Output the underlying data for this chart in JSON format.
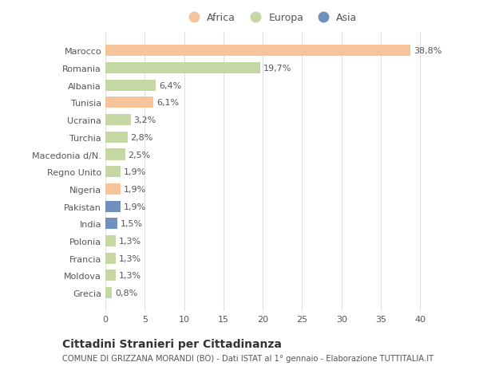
{
  "countries": [
    "Marocco",
    "Romania",
    "Albania",
    "Tunisia",
    "Ucraina",
    "Turchia",
    "Macedonia d/N.",
    "Regno Unito",
    "Nigeria",
    "Pakistan",
    "India",
    "Polonia",
    "Francia",
    "Moldova",
    "Grecia"
  ],
  "values": [
    38.8,
    19.7,
    6.4,
    6.1,
    3.2,
    2.8,
    2.5,
    1.9,
    1.9,
    1.9,
    1.5,
    1.3,
    1.3,
    1.3,
    0.8
  ],
  "labels": [
    "38,8%",
    "19,7%",
    "6,4%",
    "6,1%",
    "3,2%",
    "2,8%",
    "2,5%",
    "1,9%",
    "1,9%",
    "1,9%",
    "1,5%",
    "1,3%",
    "1,3%",
    "1,3%",
    "0,8%"
  ],
  "continents": [
    "Africa",
    "Europa",
    "Europa",
    "Africa",
    "Europa",
    "Europa",
    "Europa",
    "Europa",
    "Africa",
    "Asia",
    "Asia",
    "Europa",
    "Europa",
    "Europa",
    "Europa"
  ],
  "colors": {
    "Africa": "#F5C49A",
    "Europa": "#C5D8A4",
    "Asia": "#7090C0"
  },
  "title": "Cittadini Stranieri per Cittadinanza",
  "subtitle": "COMUNE DI GRIZZANA MORANDI (BO) - Dati ISTAT al 1° gennaio - Elaborazione TUTTITALIA.IT",
  "xlim": [
    0,
    42
  ],
  "xticks": [
    0,
    5,
    10,
    15,
    20,
    25,
    30,
    35,
    40
  ],
  "background_color": "#ffffff",
  "grid_color": "#e0e0e0"
}
